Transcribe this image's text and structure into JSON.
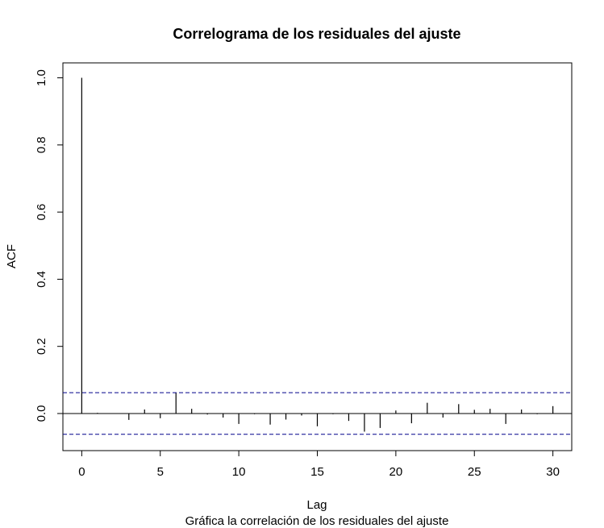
{
  "chart_data": {
    "type": "bar",
    "title": "Correlograma de los residuales del ajuste",
    "xlabel": "Lag",
    "ylabel": "ACF",
    "subtitle": "Gráfica la correlación de los residuales del ajuste",
    "xlim": [
      -1.2,
      31.2
    ],
    "ylim": [
      -0.1105,
      1.0445
    ],
    "x_ticks": [
      0,
      5,
      10,
      15,
      20,
      25,
      30
    ],
    "y_ticks": [
      0.0,
      0.2,
      0.4,
      0.6,
      0.8,
      1.0
    ],
    "x_tick_labels": [
      "0",
      "5",
      "10",
      "15",
      "20",
      "25",
      "30"
    ],
    "y_tick_labels": [
      "0.0",
      "0.2",
      "0.4",
      "0.6",
      "0.8",
      "1.0"
    ],
    "confidence_bound": 0.062,
    "grid": false,
    "lags": [
      0,
      1,
      2,
      3,
      4,
      5,
      6,
      7,
      8,
      9,
      10,
      11,
      12,
      13,
      14,
      15,
      16,
      17,
      18,
      19,
      20,
      21,
      22,
      23,
      24,
      25,
      26,
      27,
      28,
      29,
      30
    ],
    "values": [
      1.0,
      0.002,
      0.0,
      -0.019,
      0.012,
      -0.014,
      0.062,
      0.014,
      -0.003,
      -0.012,
      -0.031,
      -0.002,
      -0.033,
      -0.018,
      -0.006,
      -0.038,
      -0.002,
      -0.022,
      -0.054,
      -0.043,
      0.009,
      -0.029,
      0.032,
      -0.012,
      0.028,
      0.011,
      0.014,
      -0.031,
      0.012,
      -0.002,
      0.022
    ],
    "colors": {
      "bars": "#000000",
      "confidence": "#00008b",
      "zero_line": "#000000"
    }
  }
}
